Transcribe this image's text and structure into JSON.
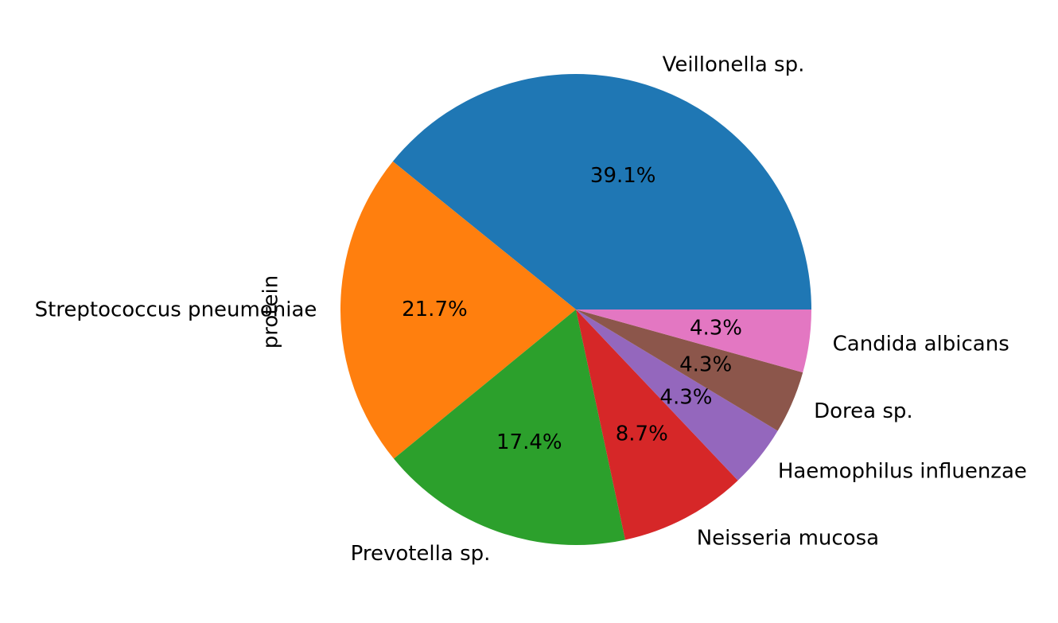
{
  "chart_data": {
    "type": "pie",
    "ylabel": "protein",
    "start_angle_deg": 0,
    "direction": "counterclockwise",
    "slices": [
      {
        "label": "Veillonella sp.",
        "value": 39.1,
        "pct_label": "39.1%",
        "color": "#1f77b4"
      },
      {
        "label": "Streptococcus pneumoniae",
        "value": 21.7,
        "pct_label": "21.7%",
        "color": "#ff7f0e"
      },
      {
        "label": "Prevotella sp.",
        "value": 17.4,
        "pct_label": "17.4%",
        "color": "#2ca02c"
      },
      {
        "label": "Neisseria mucosa",
        "value": 8.7,
        "pct_label": "8.7%",
        "color": "#d62728"
      },
      {
        "label": "Haemophilus influenzae",
        "value": 4.3,
        "pct_label": "4.3%",
        "color": "#9467bd"
      },
      {
        "label": "Dorea sp.",
        "value": 4.3,
        "pct_label": "4.3%",
        "color": "#8c564b"
      },
      {
        "label": "Candida albicans",
        "value": 4.3,
        "pct_label": "4.3%",
        "color": "#e377c2"
      }
    ]
  }
}
